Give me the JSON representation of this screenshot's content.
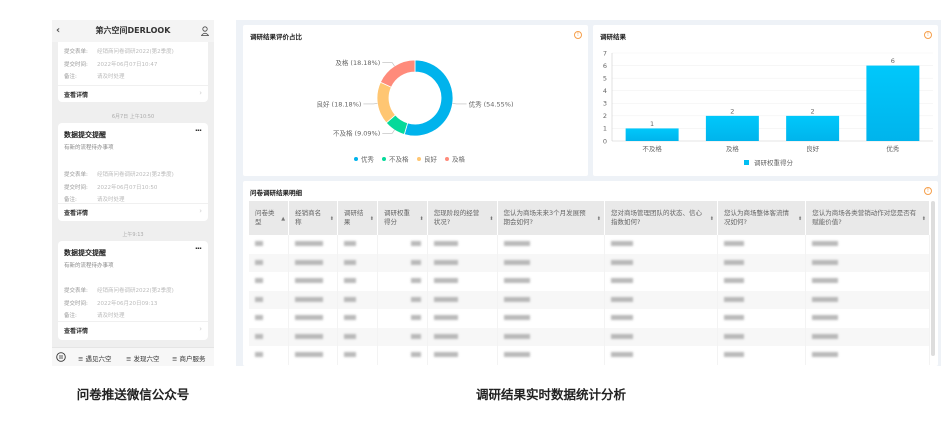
{
  "phone": {
    "title": "第六空间DERLOOK",
    "cards": [
      {
        "fields": [
          {
            "label": "提交表单:",
            "value": "经销商问卷调研2022(第2季度)"
          },
          {
            "label": "提交时间:",
            "value": "2022年06月07日10:47"
          },
          {
            "label": "备注:",
            "value": "请及时处理"
          }
        ],
        "link": "查看详情"
      },
      {
        "time": "6月7日 上午10:50",
        "title": "数据提交提醒",
        "subtitle": "有新的流程待办事项",
        "fields": [
          {
            "label": "提交表单:",
            "value": "经销商问卷调研2022(第2季度)"
          },
          {
            "label": "提交时间:",
            "value": "2022年06月07日10:50"
          },
          {
            "label": "备注:",
            "value": "请及时处理"
          }
        ],
        "link": "查看详情"
      },
      {
        "time": "上午9:13",
        "title": "数据提交提醒",
        "subtitle": "有新的流程待办事项",
        "fields": [
          {
            "label": "提交表单:",
            "value": "经销商问卷调研2022(第2季度)"
          },
          {
            "label": "提交时间:",
            "value": "2022年06月20日09:13"
          },
          {
            "label": "备注:",
            "value": "请及时处理"
          }
        ],
        "link": "查看详情"
      }
    ],
    "menu": [
      "遇见六空",
      "发现六空",
      "商户服务"
    ]
  },
  "captions": {
    "left": "问卷推送微信公众号",
    "right": "调研结果实时数据统计分析"
  },
  "pie_card": {
    "title": "调研结果评价占比"
  },
  "bar_card": {
    "title": "调研结果"
  },
  "table_card": {
    "title": "问卷调研结果明细",
    "columns": [
      "问卷类型",
      "经销商名称",
      "调研结果",
      "调研权重得分",
      "您现阶段的经营状况?",
      "您认为商场未来3个月发展预期会如何?",
      "您对商场管理团队的状态、信心指数如何?",
      "您认为商场整体客流情况如何?",
      "您认为商场各类营销动作对您是否有赋能价值?"
    ]
  },
  "chart_data": [
    {
      "type": "pie",
      "donut": true,
      "title": "调研结果评价占比",
      "slices": [
        {
          "name": "优秀",
          "value": 54.55,
          "label": "优秀 (54.55%)",
          "color": "#00b3ec"
        },
        {
          "name": "不及格",
          "value": 9.09,
          "label": "不及格 (9.09%)",
          "color": "#05d99a"
        },
        {
          "name": "良好",
          "value": 18.18,
          "label": "良好 (18.18%)",
          "color": "#ffc672"
        },
        {
          "name": "及格",
          "value": 18.18,
          "label": "及格 (18.18%)",
          "color": "#ff8b7b"
        }
      ],
      "legend": "bottom"
    },
    {
      "type": "bar",
      "title": "调研结果",
      "categories": [
        "不及格",
        "及格",
        "良好",
        "优秀"
      ],
      "series": [
        {
          "name": "调研权重得分",
          "values": [
            1,
            2,
            2,
            6
          ]
        }
      ],
      "ylim": [
        0,
        7
      ],
      "yticks": [
        "0",
        "1",
        "2",
        "3",
        "4",
        "5",
        "6",
        "7"
      ],
      "grid": true,
      "legend": "bottom",
      "color": "#00bff3"
    }
  ]
}
